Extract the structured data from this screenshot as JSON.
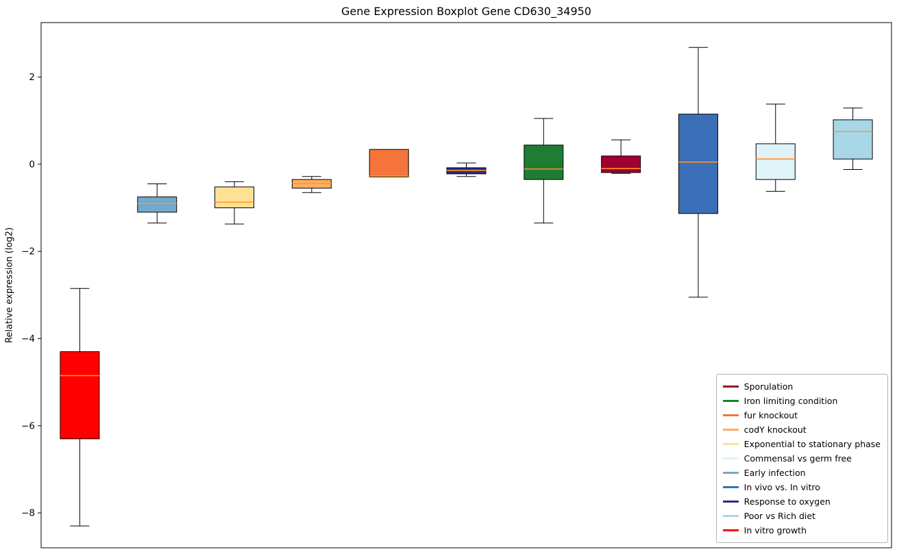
{
  "title": "Gene Expression Boxplot Gene CD630_34950",
  "ylabel": "Relative expression (log2)",
  "chart_data": {
    "type": "boxplot",
    "title": "Gene Expression Boxplot Gene CD630_34950",
    "xlabel": "",
    "ylabel": "Relative expression (log2)",
    "ylim": [
      -8.8,
      3.25
    ],
    "grid": false,
    "legend_position": "lower right",
    "median_color": "#ff9429",
    "box_edge_color": "#000000",
    "whisker_color": "#000000",
    "yticks": [
      {
        "value": 2,
        "label": "2"
      },
      {
        "value": 0,
        "label": "0"
      },
      {
        "value": -2,
        "label": "−2"
      },
      {
        "value": -4,
        "label": "−4"
      },
      {
        "value": -6,
        "label": "−6"
      },
      {
        "value": -8,
        "label": "−8"
      }
    ],
    "boxes": [
      {
        "name": "In vitro growth",
        "color": "#ff0000",
        "whisker_low": -8.3,
        "q1": -6.3,
        "median": -4.85,
        "q3": -4.3,
        "whisker_high": -2.85
      },
      {
        "name": "Early infection",
        "color": "#74a9cf",
        "whisker_low": -1.35,
        "q1": -1.1,
        "median": -0.9,
        "q3": -0.75,
        "whisker_high": -0.45
      },
      {
        "name": "Exponential to stationary phase",
        "color": "#ffe196",
        "whisker_low": -1.37,
        "q1": -1.0,
        "median": -0.87,
        "q3": -0.52,
        "whisker_high": -0.4
      },
      {
        "name": "codY knockout",
        "color": "#fdae61",
        "whisker_low": -0.65,
        "q1": -0.55,
        "median": -0.44,
        "q3": -0.35,
        "whisker_high": -0.28
      },
      {
        "name": "fur knockout",
        "color": "#f4743b",
        "whisker_low": -0.29,
        "q1": -0.29,
        "median": -0.27,
        "q3": 0.34,
        "whisker_high": 0.34
      },
      {
        "name": "Response to oxygen",
        "color": "#2b2e83",
        "whisker_low": -0.28,
        "q1": -0.22,
        "median": -0.14,
        "q3": -0.08,
        "whisker_high": 0.03
      },
      {
        "name": "Iron limiting condition",
        "color": "#1e7d32",
        "whisker_low": -1.35,
        "q1": -0.35,
        "median": -0.11,
        "q3": 0.44,
        "whisker_high": 1.05
      },
      {
        "name": "Sporulation",
        "color": "#a00030",
        "whisker_low": -0.21,
        "q1": -0.19,
        "median": -0.1,
        "q3": 0.19,
        "whisker_high": 0.56
      },
      {
        "name": "In vivo vs. In vitro",
        "color": "#3a6fb7",
        "whisker_low": -3.05,
        "q1": -1.13,
        "median": 0.05,
        "q3": 1.15,
        "whisker_high": 2.68
      },
      {
        "name": "Commensal vs germ free",
        "color": "#e0f3f8",
        "whisker_low": -0.62,
        "q1": -0.35,
        "median": 0.12,
        "q3": 0.47,
        "whisker_high": 1.38
      },
      {
        "name": "Poor vs Rich diet",
        "color": "#a8d8e8",
        "whisker_low": -0.12,
        "q1": 0.12,
        "median": 0.75,
        "q3": 1.02,
        "whisker_high": 1.29
      }
    ],
    "legend": [
      {
        "label": "Sporulation",
        "color": "#a00030"
      },
      {
        "label": "Iron limiting condition",
        "color": "#1e7d32"
      },
      {
        "label": "fur knockout",
        "color": "#f4743b"
      },
      {
        "label": "codY knockout",
        "color": "#fdae61"
      },
      {
        "label": "Exponential to stationary phase",
        "color": "#ffe196"
      },
      {
        "label": "Commensal vs germ free",
        "color": "#e0f3f8"
      },
      {
        "label": "Early infection",
        "color": "#74a9cf"
      },
      {
        "label": "In vivo vs. In vitro",
        "color": "#3a6fb7"
      },
      {
        "label": "Response to oxygen",
        "color": "#2b2e83"
      },
      {
        "label": "Poor vs Rich diet",
        "color": "#a8d8e8"
      },
      {
        "label": "In vitro growth",
        "color": "#ff0000"
      }
    ]
  }
}
